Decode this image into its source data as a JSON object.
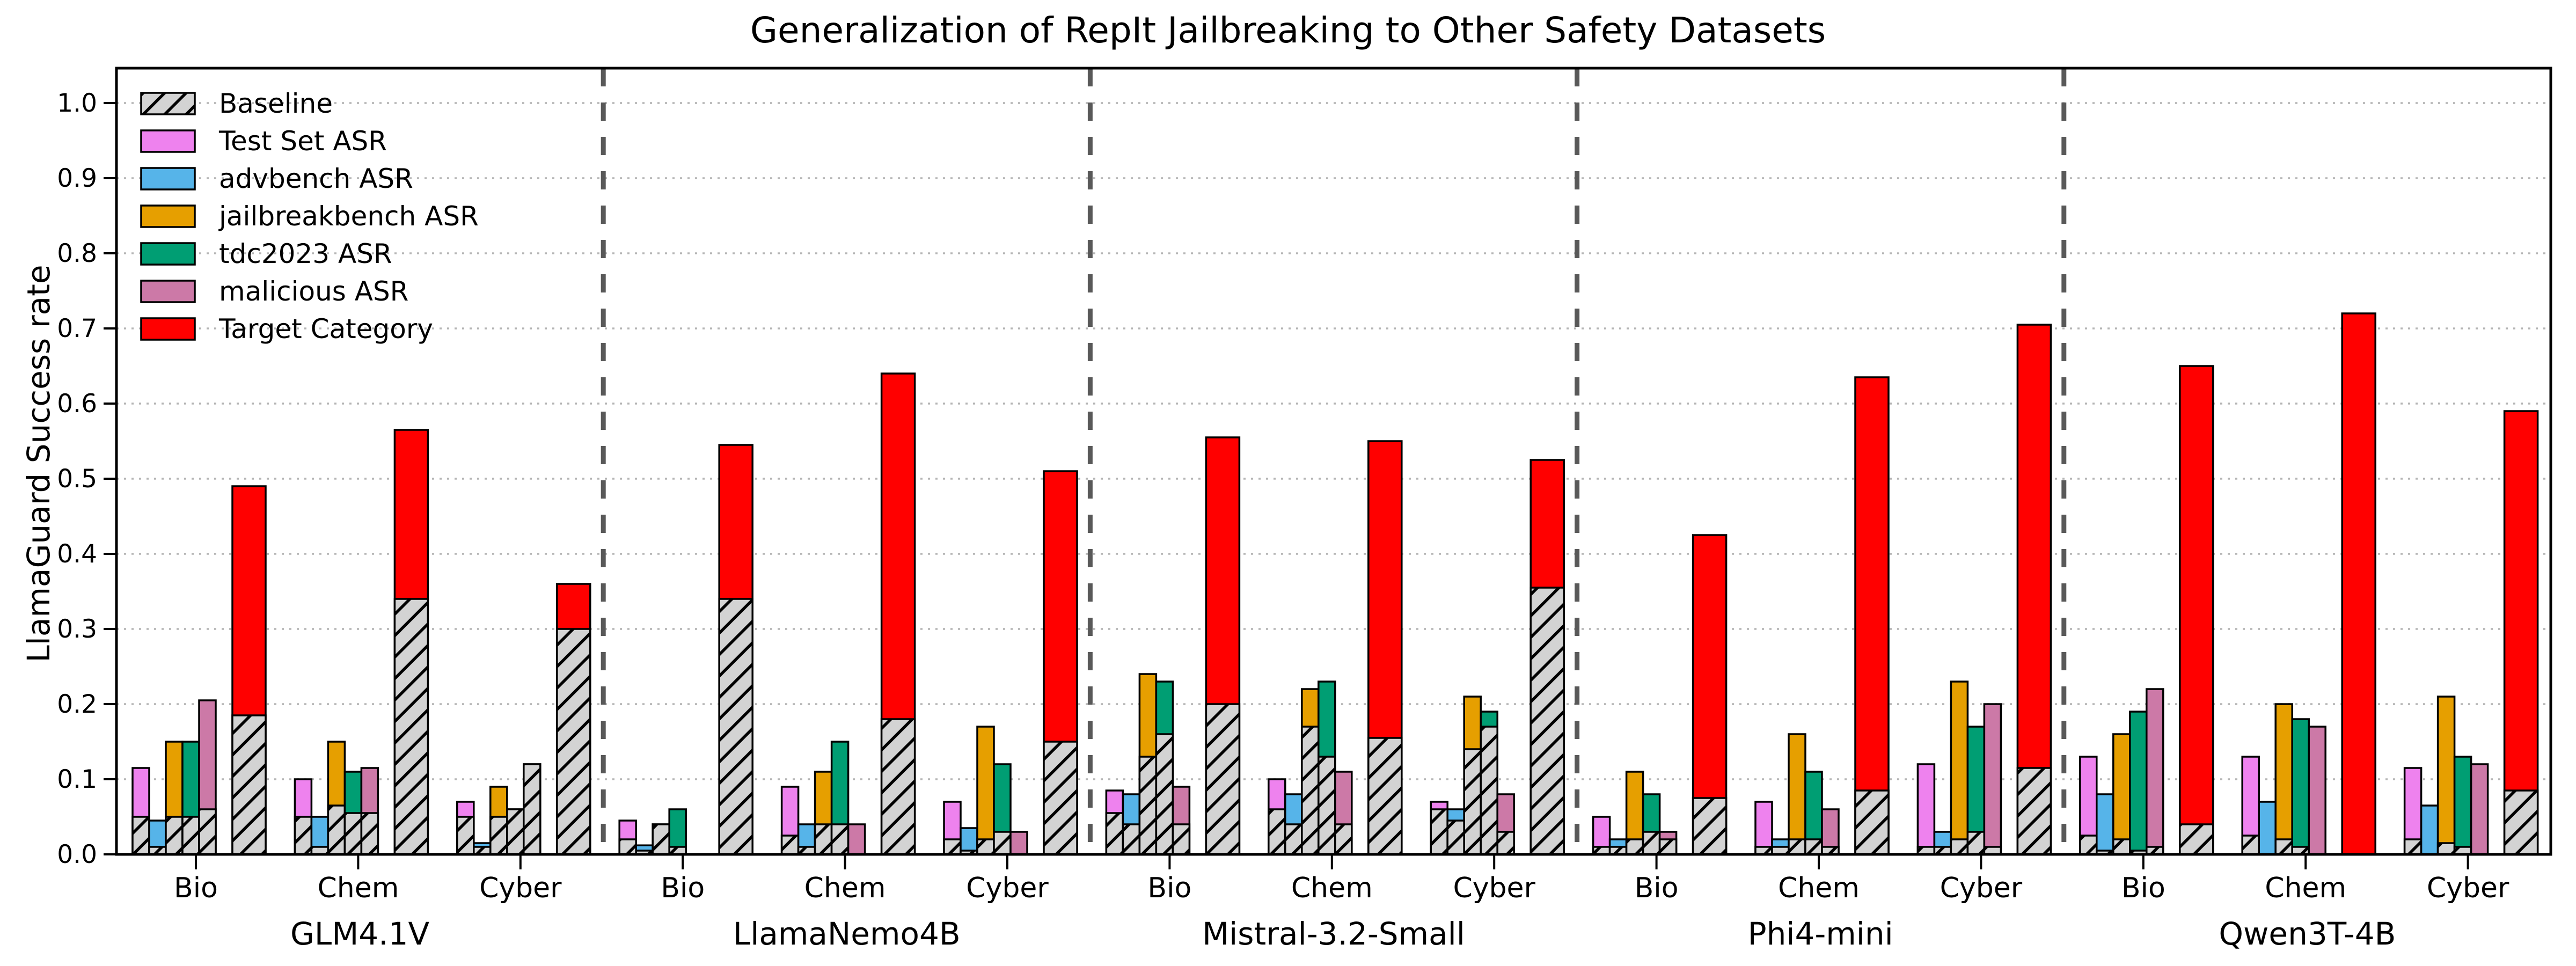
{
  "chart_data": {
    "type": "bar",
    "title": "Generalization of RepIt Jailbreaking to Other Safety Datasets",
    "ylabel": "LlamaGuard Success rate",
    "xlabel": "",
    "ylim": [
      0.0,
      1.05
    ],
    "yticks": [
      "0.0",
      "0.1",
      "0.2",
      "0.3",
      "0.4",
      "0.5",
      "0.6",
      "0.7",
      "0.8",
      "0.9",
      "1.0"
    ],
    "grid": "horizontal dotted gridlines at each 0.1",
    "legend_position": "upper-left inside axes",
    "categories": [
      "Bio",
      "Chem",
      "Cyber"
    ],
    "legend": [
      {
        "key": "baseline",
        "label": "Baseline",
        "color": "#d3d3d3",
        "hatched": true
      },
      {
        "key": "test",
        "label": "Test Set ASR",
        "color": "#ee82ee",
        "hatched": false
      },
      {
        "key": "advbench",
        "label": "advbench ASR",
        "color": "#56b4e9",
        "hatched": false
      },
      {
        "key": "jailbreakbench",
        "label": "jailbreakbench ASR",
        "color": "#e69f00",
        "hatched": false
      },
      {
        "key": "tdc2023",
        "label": "tdc2023 ASR",
        "color": "#009e73",
        "hatched": false
      },
      {
        "key": "malicious",
        "label": "malicious ASR",
        "color": "#cc79a7",
        "hatched": false
      },
      {
        "key": "target",
        "label": "Target Category",
        "color": "#ff0000",
        "hatched": false
      }
    ],
    "colors": {
      "baseline_fill": "#d3d3d3",
      "bar_edge": "#000000",
      "gridline": "#b5b5b5",
      "separator": "#595959",
      "text": "#000000"
    },
    "groups": [
      {
        "model": "GLM4.1V",
        "clusters": [
          {
            "category": "Bio",
            "bars": [
              {
                "series": "Test Set ASR",
                "asr": 0.115,
                "baseline": 0.05
              },
              {
                "series": "advbench ASR",
                "asr": 0.045,
                "baseline": 0.01
              },
              {
                "series": "jailbreakbench ASR",
                "asr": 0.15,
                "baseline": 0.05
              },
              {
                "series": "tdc2023 ASR",
                "asr": 0.15,
                "baseline": 0.05
              },
              {
                "series": "malicious ASR",
                "asr": 0.205,
                "baseline": 0.06
              },
              {
                "series": "Target Category",
                "asr": 0.49,
                "baseline": 0.185
              }
            ]
          },
          {
            "category": "Chem",
            "bars": [
              {
                "series": "Test Set ASR",
                "asr": 0.1,
                "baseline": 0.05
              },
              {
                "series": "advbench ASR",
                "asr": 0.05,
                "baseline": 0.01
              },
              {
                "series": "jailbreakbench ASR",
                "asr": 0.15,
                "baseline": 0.065
              },
              {
                "series": "tdc2023 ASR",
                "asr": 0.11,
                "baseline": 0.055
              },
              {
                "series": "malicious ASR",
                "asr": 0.115,
                "baseline": 0.055
              },
              {
                "series": "Target Category",
                "asr": 0.565,
                "baseline": 0.34
              }
            ]
          },
          {
            "category": "Cyber",
            "bars": [
              {
                "series": "Test Set ASR",
                "asr": 0.07,
                "baseline": 0.05
              },
              {
                "series": "advbench ASR",
                "asr": 0.015,
                "baseline": 0.01
              },
              {
                "series": "jailbreakbench ASR",
                "asr": 0.09,
                "baseline": 0.05
              },
              {
                "series": "tdc2023 ASR",
                "asr": 0.06,
                "baseline": 0.06
              },
              {
                "series": "malicious ASR",
                "asr": 0.12,
                "baseline": 0.12
              },
              {
                "series": "Target Category",
                "asr": 0.36,
                "baseline": 0.3
              }
            ]
          }
        ]
      },
      {
        "model": "LlamaNemo4B",
        "clusters": [
          {
            "category": "Bio",
            "bars": [
              {
                "series": "Test Set ASR",
                "asr": 0.045,
                "baseline": 0.02
              },
              {
                "series": "advbench ASR",
                "asr": 0.012,
                "baseline": 0.005
              },
              {
                "series": "jailbreakbench ASR",
                "asr": 0.04,
                "baseline": 0.04
              },
              {
                "series": "tdc2023 ASR",
                "asr": 0.06,
                "baseline": 0.01
              },
              {
                "series": "malicious ASR",
                "asr": 0.0,
                "baseline": 0.0
              },
              {
                "series": "Target Category",
                "asr": 0.545,
                "baseline": 0.34
              }
            ]
          },
          {
            "category": "Chem",
            "bars": [
              {
                "series": "Test Set ASR",
                "asr": 0.09,
                "baseline": 0.025
              },
              {
                "series": "advbench ASR",
                "asr": 0.04,
                "baseline": 0.01
              },
              {
                "series": "jailbreakbench ASR",
                "asr": 0.11,
                "baseline": 0.04
              },
              {
                "series": "tdc2023 ASR",
                "asr": 0.15,
                "baseline": 0.04
              },
              {
                "series": "malicious ASR",
                "asr": 0.04,
                "baseline": 0.0
              },
              {
                "series": "Target Category",
                "asr": 0.64,
                "baseline": 0.18
              }
            ]
          },
          {
            "category": "Cyber",
            "bars": [
              {
                "series": "Test Set ASR",
                "asr": 0.07,
                "baseline": 0.02
              },
              {
                "series": "advbench ASR",
                "asr": 0.035,
                "baseline": 0.005
              },
              {
                "series": "jailbreakbench ASR",
                "asr": 0.17,
                "baseline": 0.02
              },
              {
                "series": "tdc2023 ASR",
                "asr": 0.12,
                "baseline": 0.03
              },
              {
                "series": "malicious ASR",
                "asr": 0.03,
                "baseline": 0.0
              },
              {
                "series": "Target Category",
                "asr": 0.51,
                "baseline": 0.15
              }
            ]
          }
        ]
      },
      {
        "model": "Mistral-3.2-Small",
        "clusters": [
          {
            "category": "Bio",
            "bars": [
              {
                "series": "Test Set ASR",
                "asr": 0.085,
                "baseline": 0.055
              },
              {
                "series": "advbench ASR",
                "asr": 0.08,
                "baseline": 0.04
              },
              {
                "series": "jailbreakbench ASR",
                "asr": 0.24,
                "baseline": 0.13
              },
              {
                "series": "tdc2023 ASR",
                "asr": 0.23,
                "baseline": 0.16
              },
              {
                "series": "malicious ASR",
                "asr": 0.09,
                "baseline": 0.04
              },
              {
                "series": "Target Category",
                "asr": 0.555,
                "baseline": 0.2
              }
            ]
          },
          {
            "category": "Chem",
            "bars": [
              {
                "series": "Test Set ASR",
                "asr": 0.1,
                "baseline": 0.06
              },
              {
                "series": "advbench ASR",
                "asr": 0.08,
                "baseline": 0.04
              },
              {
                "series": "jailbreakbench ASR",
                "asr": 0.22,
                "baseline": 0.17
              },
              {
                "series": "tdc2023 ASR",
                "asr": 0.23,
                "baseline": 0.13
              },
              {
                "series": "malicious ASR",
                "asr": 0.11,
                "baseline": 0.04
              },
              {
                "series": "Target Category",
                "asr": 0.55,
                "baseline": 0.155
              }
            ]
          },
          {
            "category": "Cyber",
            "bars": [
              {
                "series": "Test Set ASR",
                "asr": 0.07,
                "baseline": 0.06
              },
              {
                "series": "advbench ASR",
                "asr": 0.06,
                "baseline": 0.045
              },
              {
                "series": "jailbreakbench ASR",
                "asr": 0.21,
                "baseline": 0.14
              },
              {
                "series": "tdc2023 ASR",
                "asr": 0.19,
                "baseline": 0.17
              },
              {
                "series": "malicious ASR",
                "asr": 0.08,
                "baseline": 0.03
              },
              {
                "series": "Target Category",
                "asr": 0.525,
                "baseline": 0.355
              }
            ]
          }
        ]
      },
      {
        "model": "Phi4-mini",
        "clusters": [
          {
            "category": "Bio",
            "bars": [
              {
                "series": "Test Set ASR",
                "asr": 0.05,
                "baseline": 0.01
              },
              {
                "series": "advbench ASR",
                "asr": 0.02,
                "baseline": 0.01
              },
              {
                "series": "jailbreakbench ASR",
                "asr": 0.11,
                "baseline": 0.02
              },
              {
                "series": "tdc2023 ASR",
                "asr": 0.08,
                "baseline": 0.03
              },
              {
                "series": "malicious ASR",
                "asr": 0.03,
                "baseline": 0.02
              },
              {
                "series": "Target Category",
                "asr": 0.425,
                "baseline": 0.075
              }
            ]
          },
          {
            "category": "Chem",
            "bars": [
              {
                "series": "Test Set ASR",
                "asr": 0.07,
                "baseline": 0.01
              },
              {
                "series": "advbench ASR",
                "asr": 0.02,
                "baseline": 0.01
              },
              {
                "series": "jailbreakbench ASR",
                "asr": 0.16,
                "baseline": 0.02
              },
              {
                "series": "tdc2023 ASR",
                "asr": 0.11,
                "baseline": 0.02
              },
              {
                "series": "malicious ASR",
                "asr": 0.06,
                "baseline": 0.01
              },
              {
                "series": "Target Category",
                "asr": 0.635,
                "baseline": 0.085
              }
            ]
          },
          {
            "category": "Cyber",
            "bars": [
              {
                "series": "Test Set ASR",
                "asr": 0.12,
                "baseline": 0.01
              },
              {
                "series": "advbench ASR",
                "asr": 0.03,
                "baseline": 0.01
              },
              {
                "series": "jailbreakbench ASR",
                "asr": 0.23,
                "baseline": 0.02
              },
              {
                "series": "tdc2023 ASR",
                "asr": 0.17,
                "baseline": 0.03
              },
              {
                "series": "malicious ASR",
                "asr": 0.2,
                "baseline": 0.01
              },
              {
                "series": "Target Category",
                "asr": 0.705,
                "baseline": 0.115
              }
            ]
          }
        ]
      },
      {
        "model": "Qwen3T-4B",
        "clusters": [
          {
            "category": "Bio",
            "bars": [
              {
                "series": "Test Set ASR",
                "asr": 0.13,
                "baseline": 0.025
              },
              {
                "series": "advbench ASR",
                "asr": 0.08,
                "baseline": 0.005
              },
              {
                "series": "jailbreakbench ASR",
                "asr": 0.16,
                "baseline": 0.02
              },
              {
                "series": "tdc2023 ASR",
                "asr": 0.19,
                "baseline": 0.005
              },
              {
                "series": "malicious ASR",
                "asr": 0.22,
                "baseline": 0.01
              },
              {
                "series": "Target Category",
                "asr": 0.65,
                "baseline": 0.04
              }
            ]
          },
          {
            "category": "Chem",
            "bars": [
              {
                "series": "Test Set ASR",
                "asr": 0.13,
                "baseline": 0.025
              },
              {
                "series": "advbench ASR",
                "asr": 0.07,
                "baseline": 0.0
              },
              {
                "series": "jailbreakbench ASR",
                "asr": 0.2,
                "baseline": 0.02
              },
              {
                "series": "tdc2023 ASR",
                "asr": 0.18,
                "baseline": 0.01
              },
              {
                "series": "malicious ASR",
                "asr": 0.17,
                "baseline": 0.0
              },
              {
                "series": "Target Category",
                "asr": 0.72,
                "baseline": 0.0
              }
            ]
          },
          {
            "category": "Cyber",
            "bars": [
              {
                "series": "Test Set ASR",
                "asr": 0.115,
                "baseline": 0.02
              },
              {
                "series": "advbench ASR",
                "asr": 0.065,
                "baseline": 0.0
              },
              {
                "series": "jailbreakbench ASR",
                "asr": 0.21,
                "baseline": 0.015
              },
              {
                "series": "tdc2023 ASR",
                "asr": 0.13,
                "baseline": 0.01
              },
              {
                "series": "malicious ASR",
                "asr": 0.12,
                "baseline": 0.0
              },
              {
                "series": "Target Category",
                "asr": 0.59,
                "baseline": 0.085
              }
            ]
          }
        ]
      }
    ]
  }
}
